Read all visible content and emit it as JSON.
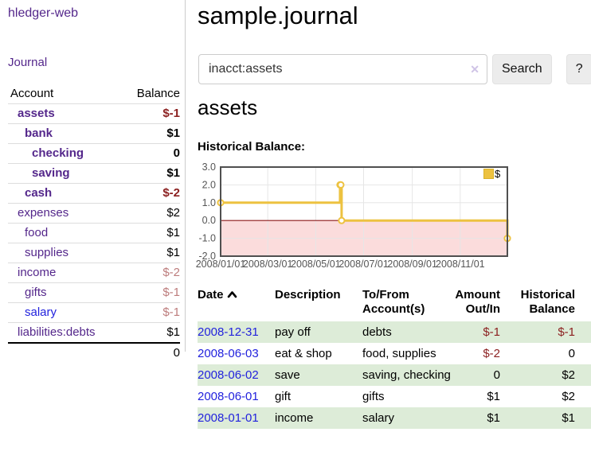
{
  "app": {
    "brand": "hledger-web",
    "nav_journal": "Journal"
  },
  "sidebar": {
    "headers": {
      "account": "Account",
      "balance": "Balance"
    },
    "accounts": [
      {
        "name": "assets",
        "balance": "$-1"
      },
      {
        "name": "bank",
        "balance": "$1"
      },
      {
        "name": "checking",
        "balance": "0"
      },
      {
        "name": "saving",
        "balance": "$1"
      },
      {
        "name": "cash",
        "balance": "$-2"
      },
      {
        "name": "expenses",
        "balance": "$2"
      },
      {
        "name": "food",
        "balance": "$1"
      },
      {
        "name": "supplies",
        "balance": "$1"
      },
      {
        "name": "income",
        "balance": "$-2"
      },
      {
        "name": "gifts",
        "balance": "$-1"
      },
      {
        "name": "salary",
        "balance": "$-1"
      },
      {
        "name": "liabilities:debts",
        "balance": "$1"
      }
    ],
    "total": "0"
  },
  "header": {
    "title": "sample.journal"
  },
  "search": {
    "value": "inacct:assets",
    "clear_label": "✕",
    "search_button": "Search",
    "help_button": "?"
  },
  "account_page": {
    "heading": "assets",
    "chart_title": "Historical Balance:"
  },
  "chart_data": {
    "type": "line",
    "title": "Historical Balance:",
    "series": [
      {
        "name": "$",
        "color": "#edc240",
        "steps": true,
        "points": [
          [
            "2008-01-01",
            1
          ],
          [
            "2008-06-01",
            2
          ],
          [
            "2008-06-02",
            2
          ],
          [
            "2008-06-03",
            0
          ],
          [
            "2008-12-31",
            -1
          ]
        ]
      }
    ],
    "x_start": "2008-01-01",
    "x_end": "2008-12-31",
    "ylim": [
      -2,
      3
    ],
    "ytick_values": [
      3,
      2,
      1,
      0,
      -1,
      -2
    ],
    "yticks": [
      "3.0",
      "2.0",
      "1.0",
      "0.0",
      "-1.0",
      "-2.0"
    ],
    "xtick_dates": [
      "2008-01-01",
      "2008-03-01",
      "2008-05-01",
      "2008-07-01",
      "2008-09-01",
      "2008-11-01"
    ],
    "xticks": [
      "2008/01/01",
      "2008/03/01",
      "2008/05/01",
      "2008/07/01",
      "2008/09/01",
      "2008/11/01"
    ],
    "legend": "$",
    "legend_position": "top-right",
    "grid": true,
    "colors": {
      "negative_fill": "#fbdcdc",
      "zero_line": "#8b1a1a",
      "gridline": "#e6e6e6",
      "border": "#4f4f4f",
      "tick_text": "#555555"
    }
  },
  "register": {
    "headers": {
      "date": "Date",
      "description": "Description",
      "account": "To/From Account(s)",
      "amount": "Amount Out/In",
      "balance": "Historical Balance"
    },
    "rows": [
      {
        "date": "2008-12-31",
        "description": "pay off",
        "account": "debts",
        "amount": "$-1",
        "balance": "$-1"
      },
      {
        "date": "2008-06-03",
        "description": "eat & shop",
        "account": "food, supplies",
        "amount": "$-2",
        "balance": "0"
      },
      {
        "date": "2008-06-02",
        "description": "save",
        "account": "saving, checking",
        "amount": "0",
        "balance": "$2"
      },
      {
        "date": "2008-06-01",
        "description": "gift",
        "account": "gifts",
        "amount": "$1",
        "balance": "$2"
      },
      {
        "date": "2008-01-01",
        "description": "income",
        "account": "salary",
        "amount": "$1",
        "balance": "$1"
      }
    ]
  }
}
